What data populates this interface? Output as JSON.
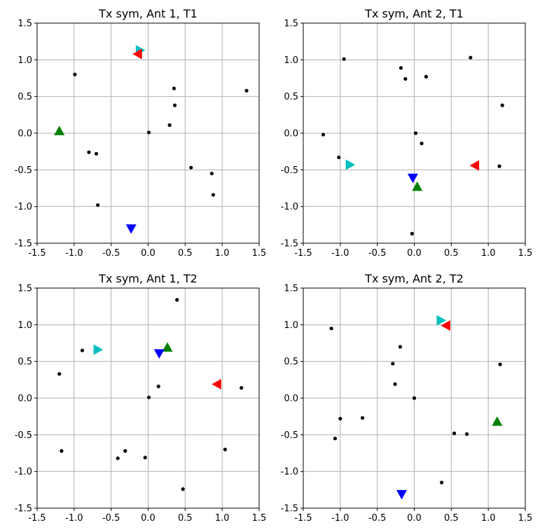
{
  "chart_data": [
    {
      "type": "scatter",
      "title": "Tx sym, Ant 1, T1",
      "xlim": [
        -1.5,
        1.5
      ],
      "ylim": [
        -1.5,
        1.5
      ],
      "xticks": [
        "-1.5",
        "-1.0",
        "-0.5",
        "0.0",
        "0.5",
        "1.0",
        "1.5"
      ],
      "yticks": [
        "-1.5",
        "-1.0",
        "-0.5",
        "0.0",
        "0.5",
        "1.0",
        "1.5"
      ],
      "grid": true,
      "points": [
        [
          -0.99,
          0.8
        ],
        [
          0.35,
          0.61
        ],
        [
          1.33,
          0.58
        ],
        [
          0.36,
          0.38
        ],
        [
          0.29,
          0.11
        ],
        [
          0.01,
          0.01
        ],
        [
          -0.8,
          -0.26
        ],
        [
          -0.7,
          -0.28
        ],
        [
          0.58,
          -0.47
        ],
        [
          0.86,
          -0.55
        ],
        [
          0.88,
          -0.84
        ],
        [
          -0.68,
          -0.98
        ]
      ],
      "markers": [
        {
          "color": "#00bfbf",
          "shape": "triangle-right",
          "x": -0.11,
          "y": 1.13
        },
        {
          "color": "#ff0000",
          "shape": "triangle-left",
          "x": -0.14,
          "y": 1.08
        },
        {
          "color": "#008000",
          "shape": "triangle-up",
          "x": -1.2,
          "y": 0.03
        },
        {
          "color": "#0000ff",
          "shape": "triangle-down",
          "x": -0.23,
          "y": -1.3
        }
      ]
    },
    {
      "type": "scatter",
      "title": "Tx sym, Ant 2, T1",
      "xlim": [
        -1.5,
        1.5
      ],
      "ylim": [
        -1.5,
        1.5
      ],
      "xticks": [
        "-1.5",
        "-1.0",
        "-0.5",
        "0.0",
        "0.5",
        "1.0",
        "1.5"
      ],
      "yticks": [
        "-1.5",
        "-1.0",
        "-0.5",
        "0.0",
        "0.5",
        "1.0",
        "1.5"
      ],
      "grid": true,
      "points": [
        [
          0.76,
          1.03
        ],
        [
          -0.95,
          1.01
        ],
        [
          -0.18,
          0.89
        ],
        [
          0.16,
          0.77
        ],
        [
          -0.12,
          0.74
        ],
        [
          1.19,
          0.38
        ],
        [
          -1.23,
          -0.02
        ],
        [
          0.02,
          0.0
        ],
        [
          0.1,
          -0.14
        ],
        [
          -1.02,
          -0.33
        ],
        [
          1.15,
          -0.45
        ],
        [
          -0.03,
          -1.37
        ]
      ],
      "markers": [
        {
          "color": "#00bfbf",
          "shape": "triangle-right",
          "x": -0.87,
          "y": -0.43
        },
        {
          "color": "#ff0000",
          "shape": "triangle-left",
          "x": 0.82,
          "y": -0.44
        },
        {
          "color": "#0000ff",
          "shape": "triangle-down",
          "x": -0.02,
          "y": -0.61
        },
        {
          "color": "#008000",
          "shape": "triangle-up",
          "x": 0.04,
          "y": -0.73
        }
      ]
    },
    {
      "type": "scatter",
      "title": "Tx sym, Ant 1, T2",
      "xlim": [
        -1.5,
        1.5
      ],
      "ylim": [
        -1.5,
        1.5
      ],
      "xticks": [
        "-1.5",
        "-1.0",
        "-0.5",
        "0.0",
        "0.5",
        "1.0",
        "1.5"
      ],
      "yticks": [
        "-1.5",
        "-1.0",
        "-0.5",
        "0.0",
        "0.5",
        "1.0",
        "1.5"
      ],
      "grid": true,
      "points": [
        [
          0.39,
          1.34
        ],
        [
          -0.89,
          0.65
        ],
        [
          -1.2,
          0.33
        ],
        [
          0.14,
          0.16
        ],
        [
          1.26,
          0.14
        ],
        [
          0.01,
          0.01
        ],
        [
          -1.17,
          -0.72
        ],
        [
          -0.31,
          -0.72
        ],
        [
          1.04,
          -0.7
        ],
        [
          -0.41,
          -0.82
        ],
        [
          -0.04,
          -0.81
        ],
        [
          0.47,
          -1.24
        ]
      ],
      "markers": [
        {
          "color": "#00bfbf",
          "shape": "triangle-right",
          "x": -0.68,
          "y": 0.66
        },
        {
          "color": "#008000",
          "shape": "triangle-up",
          "x": 0.26,
          "y": 0.69
        },
        {
          "color": "#0000ff",
          "shape": "triangle-down",
          "x": 0.15,
          "y": 0.61
        },
        {
          "color": "#ff0000",
          "shape": "triangle-left",
          "x": 0.93,
          "y": 0.19
        }
      ]
    },
    {
      "type": "scatter",
      "title": "Tx sym, Ant 2, T2",
      "xlim": [
        -1.5,
        1.5
      ],
      "ylim": [
        -1.5,
        1.5
      ],
      "xticks": [
        "-1.5",
        "-1.0",
        "-0.5",
        "0.0",
        "0.5",
        "1.0",
        "1.5"
      ],
      "yticks": [
        "-1.5",
        "-1.0",
        "-0.5",
        "0.0",
        "0.5",
        "1.0",
        "1.5"
      ],
      "grid": true,
      "points": [
        [
          -1.12,
          0.95
        ],
        [
          -0.19,
          0.7
        ],
        [
          -0.29,
          0.47
        ],
        [
          1.16,
          0.46
        ],
        [
          -0.26,
          0.19
        ],
        [
          0.0,
          0.0
        ],
        [
          -1.0,
          -0.28
        ],
        [
          -0.7,
          -0.27
        ],
        [
          -1.07,
          -0.55
        ],
        [
          0.54,
          -0.48
        ],
        [
          0.71,
          -0.49
        ],
        [
          0.37,
          -1.15
        ]
      ],
      "markers": [
        {
          "color": "#00bfbf",
          "shape": "triangle-right",
          "x": 0.36,
          "y": 1.06
        },
        {
          "color": "#ff0000",
          "shape": "triangle-left",
          "x": 0.43,
          "y": 0.99
        },
        {
          "color": "#008000",
          "shape": "triangle-up",
          "x": 1.12,
          "y": -0.32
        },
        {
          "color": "#0000ff",
          "shape": "triangle-down",
          "x": -0.17,
          "y": -1.31
        }
      ]
    }
  ]
}
